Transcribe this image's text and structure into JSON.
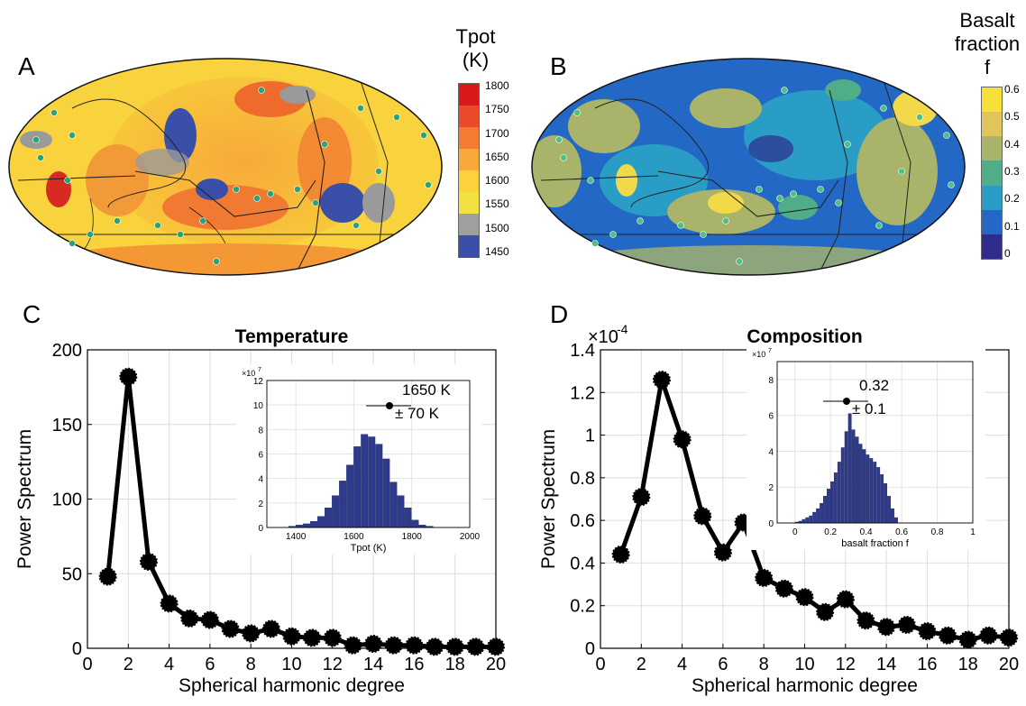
{
  "panels": {
    "a": {
      "letter": "A"
    },
    "b": {
      "letter": "B"
    },
    "c": {
      "letter": "C"
    },
    "d": {
      "letter": "D"
    }
  },
  "colorbars": {
    "temperature": {
      "title_line1": "Tpot",
      "title_line2": "(K)",
      "ticks": [
        "1800",
        "1750",
        "1700",
        "1650",
        "1600",
        "1550",
        "1500",
        "1450"
      ],
      "colors": [
        "#d7191c",
        "#ea4a2a",
        "#f47b32",
        "#f9a83a",
        "#fbd23d",
        "#f5e041",
        "#9f9f9f",
        "#3a4fa8"
      ]
    },
    "basalt": {
      "title_line1": "Basalt",
      "title_line2": "fraction",
      "title_line3": "f",
      "ticks": [
        "0.6",
        "0.5",
        "0.4",
        "0.3",
        "0.2",
        "0.1",
        "0"
      ],
      "colors": [
        "#f7e03a",
        "#e0c65a",
        "#a9b46a",
        "#4fae87",
        "#2a9dc6",
        "#2268c4",
        "#2f2c8c"
      ]
    }
  },
  "chart_data": [
    {
      "type": "line",
      "title": "Temperature",
      "xlabel": "Spherical harmonic degree",
      "ylabel": "Power Spectrum",
      "x": [
        1,
        2,
        3,
        4,
        5,
        6,
        7,
        8,
        9,
        10,
        11,
        12,
        13,
        14,
        15,
        16,
        17,
        18,
        19,
        20
      ],
      "values": [
        48,
        182,
        58,
        30,
        20,
        19,
        13,
        10,
        13,
        8,
        7,
        7,
        2,
        3,
        2,
        2,
        1,
        1,
        1,
        1
      ],
      "xlim": [
        0,
        20
      ],
      "ylim": [
        0,
        200
      ],
      "xticks": [
        "0",
        "2",
        "4",
        "6",
        "8",
        "10",
        "12",
        "14",
        "16",
        "18",
        "20"
      ],
      "yticks": [
        "0",
        "50",
        "100",
        "150",
        "200"
      ],
      "grid": true,
      "inset": {
        "type": "bar",
        "scale_label": "×10",
        "scale_exp": "7",
        "xlabel": "Tpot (K)",
        "xlim": [
          1300,
          2000
        ],
        "ylim": [
          0,
          12
        ],
        "xticks": [
          "1400",
          "1600",
          "1800",
          "2000"
        ],
        "yticks": [
          "0",
          "2",
          "4",
          "6",
          "8",
          "10",
          "12"
        ],
        "bin_width": 25,
        "bin_starts": [
          1375,
          1400,
          1425,
          1450,
          1475,
          1500,
          1525,
          1550,
          1575,
          1600,
          1625,
          1650,
          1675,
          1700,
          1725,
          1750,
          1775,
          1800,
          1825,
          1850
        ],
        "values": [
          0.1,
          0.2,
          0.3,
          0.5,
          0.9,
          1.6,
          2.6,
          3.8,
          5.1,
          6.6,
          7.6,
          7.4,
          6.8,
          5.6,
          3.7,
          2.6,
          1.6,
          0.6,
          0.2,
          0.1
        ],
        "annotation_value": "1650 K",
        "annotation_error": "± 70 K"
      }
    },
    {
      "type": "line",
      "title": "Composition",
      "xlabel": "Spherical harmonic degree",
      "ylabel": "Power Spectrum",
      "scale_label": "×10",
      "scale_exp": "-4",
      "x": [
        1,
        2,
        3,
        4,
        5,
        6,
        7,
        8,
        9,
        10,
        11,
        12,
        13,
        14,
        15,
        16,
        17,
        18,
        19,
        20
      ],
      "values": [
        0.44,
        0.71,
        1.26,
        0.98,
        0.62,
        0.45,
        0.59,
        0.33,
        0.28,
        0.24,
        0.17,
        0.23,
        0.13,
        0.1,
        0.11,
        0.08,
        0.06,
        0.04,
        0.06,
        0.05
      ],
      "xlim": [
        0,
        20
      ],
      "ylim": [
        0,
        1.4
      ],
      "xticks": [
        "0",
        "2",
        "4",
        "6",
        "8",
        "10",
        "12",
        "14",
        "16",
        "18",
        "20"
      ],
      "yticks": [
        "0",
        "0.2",
        "0.4",
        "0.6",
        "0.8",
        "1",
        "1.2",
        "1.4"
      ],
      "grid": true,
      "inset": {
        "type": "bar",
        "scale_label": "×10",
        "scale_exp": "7",
        "xlabel": "basalt fraction f",
        "xlim": [
          -0.1,
          1
        ],
        "ylim": [
          0,
          9
        ],
        "xticks": [
          "0",
          "0.2",
          "0.4",
          "0.6",
          "0.8",
          "1"
        ],
        "yticks": [
          "0",
          "2",
          "4",
          "6",
          "8"
        ],
        "bin_width": 0.02,
        "bin_starts": [
          0.0,
          0.02,
          0.04,
          0.06,
          0.08,
          0.1,
          0.12,
          0.14,
          0.16,
          0.18,
          0.2,
          0.22,
          0.24,
          0.26,
          0.28,
          0.3,
          0.32,
          0.34,
          0.36,
          0.38,
          0.4,
          0.42,
          0.44,
          0.46,
          0.48,
          0.5,
          0.52,
          0.54,
          0.56
        ],
        "values": [
          0.05,
          0.1,
          0.2,
          0.3,
          0.4,
          0.6,
          0.8,
          1.1,
          1.5,
          1.9,
          2.3,
          2.8,
          3.4,
          4.2,
          5.1,
          6.1,
          5.2,
          4.8,
          4.4,
          4.1,
          3.8,
          3.6,
          3.4,
          3.1,
          2.7,
          2.2,
          1.5,
          0.8,
          0.3
        ],
        "annotation_value": "0.32",
        "annotation_error": "± 0.1"
      }
    }
  ]
}
